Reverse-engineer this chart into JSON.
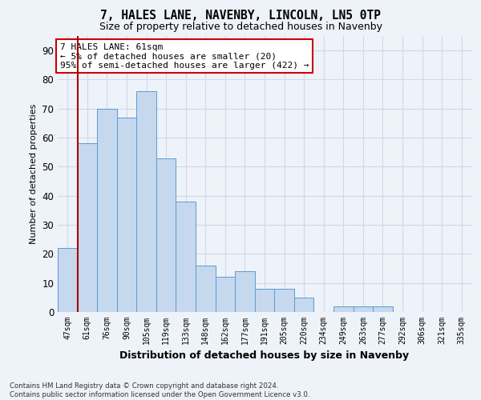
{
  "title": "7, HALES LANE, NAVENBY, LINCOLN, LN5 0TP",
  "subtitle": "Size of property relative to detached houses in Navenby",
  "xlabel": "Distribution of detached houses by size in Navenby",
  "ylabel": "Number of detached properties",
  "categories": [
    "47sqm",
    "61sqm",
    "76sqm",
    "90sqm",
    "105sqm",
    "119sqm",
    "133sqm",
    "148sqm",
    "162sqm",
    "177sqm",
    "191sqm",
    "205sqm",
    "220sqm",
    "234sqm",
    "249sqm",
    "263sqm",
    "277sqm",
    "292sqm",
    "306sqm",
    "321sqm",
    "335sqm"
  ],
  "values": [
    22,
    58,
    70,
    67,
    76,
    53,
    38,
    16,
    12,
    14,
    8,
    8,
    5,
    0,
    2,
    2,
    2,
    0,
    0,
    0,
    0
  ],
  "bar_color": "#c5d8ed",
  "bar_edge_color": "#5b9bd5",
  "highlight_bar_index": 1,
  "highlight_line_color": "#aa0000",
  "ylim": [
    0,
    95
  ],
  "yticks": [
    0,
    10,
    20,
    30,
    40,
    50,
    60,
    70,
    80,
    90
  ],
  "annotation_line1": "7 HALES LANE: 61sqm",
  "annotation_line2": "← 5% of detached houses are smaller (20)",
  "annotation_line3": "95% of semi-detached houses are larger (422) →",
  "annotation_box_color": "#ffffff",
  "annotation_box_edge": "#cc0000",
  "footer_line1": "Contains HM Land Registry data © Crown copyright and database right 2024.",
  "footer_line2": "Contains public sector information licensed under the Open Government Licence v3.0.",
  "bg_color": "#eef2f9",
  "grid_color": "#d0d8e8",
  "title_fontsize": 10.5,
  "subtitle_fontsize": 9,
  "ylabel_fontsize": 8,
  "xlabel_fontsize": 9
}
